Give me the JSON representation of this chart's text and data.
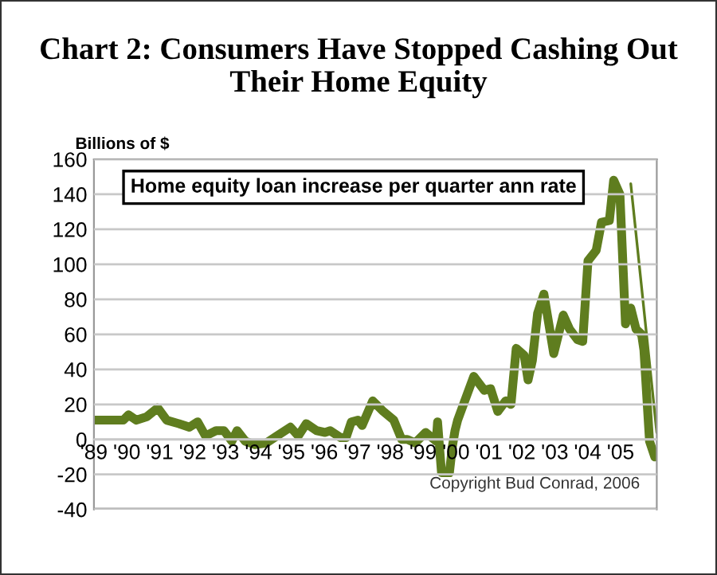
{
  "chart_data": {
    "type": "line",
    "title": "Chart 2: Consumers Have Stopped Cashing Out Their Home Equity",
    "ylabel": "Billions of $",
    "annotations": [
      "Home equity loan increase per quarter ann rate",
      "Copyright Bud Conrad, 2006"
    ],
    "series": [
      {
        "color": "#5f7d1f",
        "x": [
          1989.0,
          1989.89,
          1990.05,
          1990.29,
          1990.61,
          1990.94,
          1991.21,
          1991.58,
          1991.9,
          1992.15,
          1992.39,
          1992.71,
          1992.95,
          1993.19,
          1993.35,
          1993.6,
          1993.89,
          1994.24,
          1994.56,
          1994.97,
          1995.21,
          1995.45,
          1995.77,
          1996.02,
          1996.18,
          1996.5,
          1996.66,
          1996.82,
          1997.02,
          1997.15,
          1997.47,
          1997.79,
          1998.11,
          1998.35,
          1998.52,
          1998.76,
          1999.08,
          1999.4,
          1999.44,
          1999.56,
          1999.8,
          1999.89,
          1999.97,
          2000.05,
          2000.54,
          2000.86,
          2001.05,
          2001.27,
          2001.51,
          2001.67,
          2001.83,
          2002.07,
          2002.19,
          2002.32,
          2002.48,
          2002.67,
          2002.97,
          2003.26,
          2003.45,
          2003.69,
          2003.85,
          2004.01,
          2004.26,
          2004.42,
          2004.66,
          2004.79,
          2004.98,
          2005.15,
          2005.31,
          2005.47,
          2005.64,
          2005.71,
          2005.88,
          2006.04
        ],
        "values": [
          11,
          11,
          14,
          11,
          13,
          18,
          11,
          9,
          7,
          10,
          2,
          5,
          5,
          -1,
          5,
          -1,
          -3,
          -2,
          2,
          7,
          2,
          9,
          5,
          4,
          5,
          1,
          1,
          10,
          11,
          8,
          22,
          16,
          11,
          0,
          0,
          -2,
          4,
          -1,
          10,
          -19,
          -19,
          -4,
          5,
          11,
          36,
          28,
          29,
          16,
          22,
          20,
          52,
          48,
          34,
          45,
          72,
          83,
          49,
          71,
          63,
          57,
          56,
          102,
          108,
          124,
          125,
          148,
          140,
          66,
          75,
          63,
          60,
          51,
          -1,
          -10
        ]
      },
      {
        "color": "#5f7d1f",
        "x": [
          2005.31,
          2006.1
        ],
        "values": [
          146,
          4
        ]
      }
    ],
    "xlim": [
      1989,
      2006.1
    ],
    "xticks": [
      {
        "value": 1989,
        "label": "'89"
      },
      {
        "value": 1990,
        "label": "'90"
      },
      {
        "value": 1991,
        "label": "'91"
      },
      {
        "value": 1992,
        "label": "'92"
      },
      {
        "value": 1993,
        "label": "'93"
      },
      {
        "value": 1994,
        "label": "'94"
      },
      {
        "value": 1995,
        "label": "'95"
      },
      {
        "value": 1996,
        "label": "'96"
      },
      {
        "value": 1997,
        "label": "'97"
      },
      {
        "value": 1998,
        "label": "'98"
      },
      {
        "value": 1999,
        "label": "'99"
      },
      {
        "value": 2000,
        "label": "'00"
      },
      {
        "value": 2001,
        "label": "'01"
      },
      {
        "value": 2002,
        "label": "'02"
      },
      {
        "value": 2003,
        "label": "'03"
      },
      {
        "value": 2004,
        "label": "'04"
      },
      {
        "value": 2005,
        "label": "'05"
      }
    ],
    "ylim": [
      -40,
      160
    ],
    "yticks": [
      -40,
      -20,
      0,
      20,
      40,
      60,
      80,
      100,
      120,
      140,
      160
    ],
    "grid": "y"
  }
}
